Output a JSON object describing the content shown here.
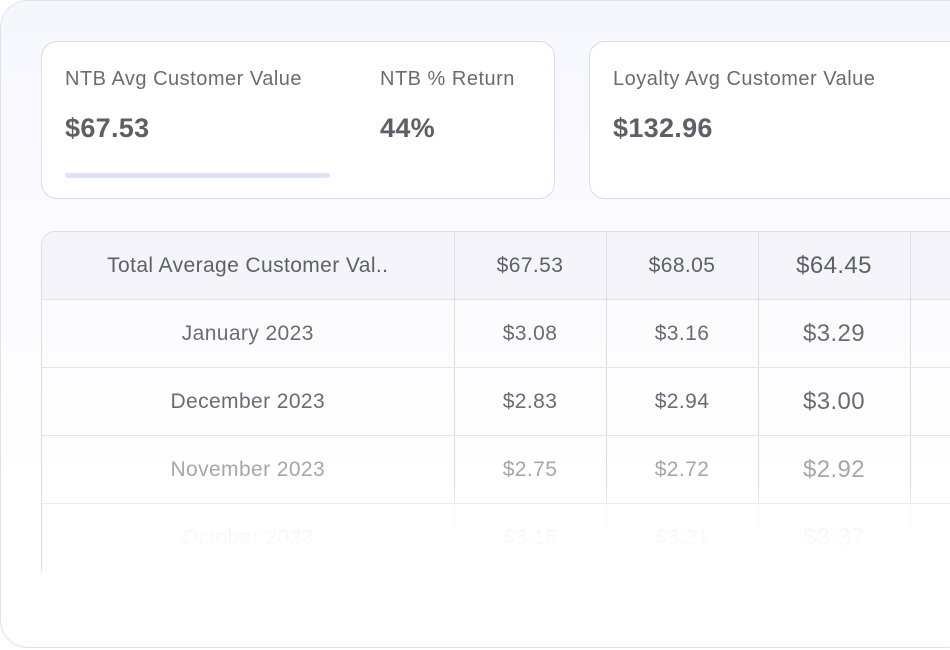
{
  "metrics": {
    "ntb_avg_customer_value": {
      "label": "NTB Avg Customer Value",
      "value": "$67.53"
    },
    "ntb_return": {
      "label": "NTB % Return",
      "value": "44%"
    },
    "loyalty_avg_customer_value": {
      "label": "Loyalty Avg Customer Value",
      "value": "$132.96"
    }
  },
  "table": {
    "header": {
      "label": "Total Average Customer Val..",
      "values": [
        "$67.53",
        "$68.05",
        "$64.45"
      ]
    },
    "rows": [
      {
        "label": "January 2023",
        "values": [
          "$3.08",
          "$3.16",
          "$3.29"
        ]
      },
      {
        "label": "December 2023",
        "values": [
          "$2.83",
          "$2.94",
          "$3.00"
        ]
      },
      {
        "label": "November 2023",
        "values": [
          "$2.75",
          "$2.72",
          "$2.92"
        ]
      },
      {
        "label": "October 2023",
        "values": [
          "$3.15",
          "$3.21",
          "$3.37"
        ]
      }
    ]
  }
}
